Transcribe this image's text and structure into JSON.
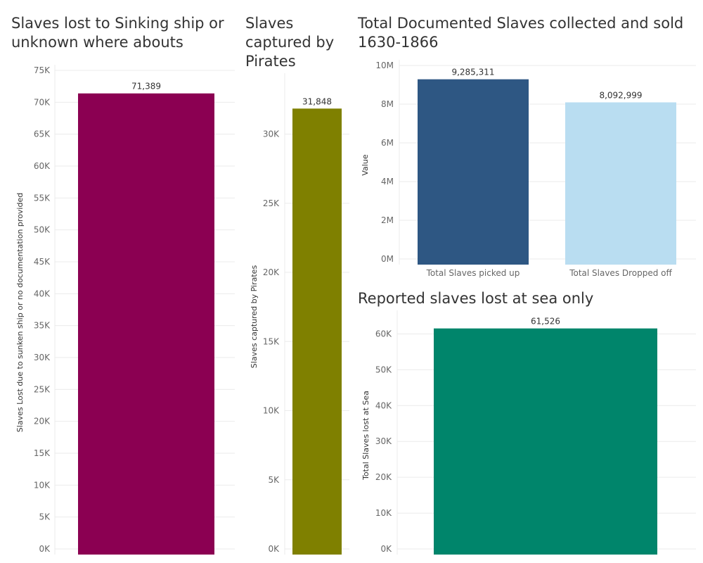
{
  "colors": {
    "sinking": "#8b0052",
    "pirates": "#7f8000",
    "picked_up": "#2e5783",
    "dropped_off": "#b9ddf1",
    "lost_at_sea": "#00856b",
    "grid": "#ebebeb",
    "axis_text": "#666666"
  },
  "chart_data": [
    {
      "id": "sinking",
      "type": "bar",
      "title_lines": [
        "Slaves lost to Sinking ship or",
        "unknown where abouts"
      ],
      "xlabel": "",
      "ylabel": "Slaves Lost due to sunken ship or no documentation provided",
      "ylim": [
        0,
        75000
      ],
      "yticks": [
        0,
        5000,
        10000,
        15000,
        20000,
        25000,
        30000,
        35000,
        40000,
        45000,
        50000,
        55000,
        60000,
        65000,
        70000,
        75000
      ],
      "ytick_labels": [
        "0K",
        "5K",
        "10K",
        "15K",
        "20K",
        "25K",
        "30K",
        "35K",
        "40K",
        "45K",
        "50K",
        "55K",
        "60K",
        "65K",
        "70K",
        "75K"
      ],
      "categories": [
        ""
      ],
      "values": [
        71389
      ],
      "value_labels": [
        "71,389"
      ],
      "grid": true
    },
    {
      "id": "pirates",
      "type": "bar",
      "title_lines": [
        "Slaves",
        "captured by",
        "Pirates"
      ],
      "xlabel": "",
      "ylabel": "Slaves captured by Pirates",
      "ylim": [
        0,
        34000
      ],
      "yticks": [
        0,
        5000,
        10000,
        15000,
        20000,
        25000,
        30000
      ],
      "ytick_labels": [
        "0K",
        "5K",
        "10K",
        "15K",
        "20K",
        "25K",
        "30K"
      ],
      "categories": [
        ""
      ],
      "values": [
        31848
      ],
      "value_labels": [
        "31,848"
      ],
      "grid": true
    },
    {
      "id": "total",
      "type": "bar",
      "title_lines": [
        "Total Documented Slaves collected and sold",
        "1630-1866"
      ],
      "xlabel": "",
      "ylabel": "Value",
      "ylim": [
        0,
        10000000
      ],
      "yticks": [
        0,
        2000000,
        4000000,
        6000000,
        8000000,
        10000000
      ],
      "ytick_labels": [
        "0M",
        "2M",
        "4M",
        "6M",
        "8M",
        "10M"
      ],
      "categories": [
        "Total Slaves picked up",
        "Total Slaves Dropped off"
      ],
      "values": [
        9285311,
        8092999
      ],
      "value_labels": [
        "9,285,311",
        "8,092,999"
      ],
      "grid": true
    },
    {
      "id": "sea",
      "type": "bar",
      "title_lines": [
        "Reported slaves lost at sea only"
      ],
      "xlabel": "",
      "ylabel": "Total Slaves lost at Sea",
      "ylim": [
        0,
        65000
      ],
      "yticks": [
        0,
        10000,
        20000,
        30000,
        40000,
        50000,
        60000
      ],
      "ytick_labels": [
        "0K",
        "10K",
        "20K",
        "30K",
        "40K",
        "50K",
        "60K"
      ],
      "categories": [
        ""
      ],
      "values": [
        61526
      ],
      "value_labels": [
        "61,526"
      ],
      "grid": true
    }
  ]
}
